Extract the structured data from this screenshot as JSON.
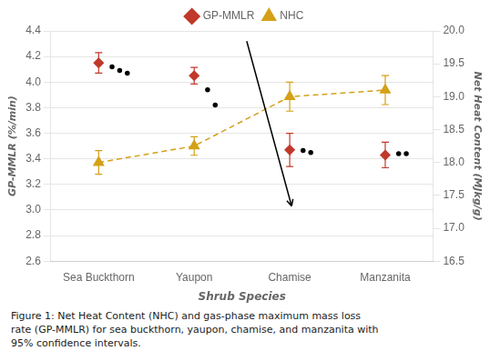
{
  "chart_data": {
    "type": "scatter",
    "x_label": "Shrub Species",
    "y_label": "GP-MMLR (%/min)",
    "y2_label": "Net Heat Content (MJkg/g)",
    "categories": [
      "Sea Buckthorn",
      "Yaupon",
      "Chamise",
      "Manzanita"
    ],
    "xlim": [
      -0.5,
      3.5
    ],
    "ylim": [
      2.6,
      4.4
    ],
    "yticks": [
      2.6,
      2.8,
      {
        "value": 3,
        "label": "3.0"
      },
      3.2,
      3.4,
      3.6,
      3.8,
      {
        "value": 4,
        "label": "4.0"
      },
      4.2,
      4.4
    ],
    "y2lim": [
      16.5,
      20
    ],
    "y2ticks": [
      16.5,
      {
        "value": 17,
        "label": "17.0"
      },
      17.5,
      {
        "value": 18,
        "label": "18.0"
      },
      18.5,
      {
        "value": 19,
        "label": "19.0"
      },
      19.5,
      {
        "value": 20,
        "label": "20.0"
      }
    ],
    "grid": "y",
    "legend": "top",
    "series": [
      {
        "color": "black",
        "marker": "dot",
        "x": [
          0.14,
          0.22,
          0.3,
          1.14,
          1.22,
          2.14,
          2.22,
          3.14,
          3.22
        ],
        "values": [
          4.12,
          4.09,
          4.07,
          3.94,
          3.82,
          3.465,
          3.45,
          3.44,
          3.44
        ]
      },
      {
        "name": "GP-MMLR",
        "color": "#c0392b",
        "marker": "diamond",
        "values": [
          4.15,
          4.05,
          3.47,
          3.43
        ],
        "errors": [
          0.08,
          0.065,
          0.13,
          0.1
        ]
      },
      {
        "name": "NHC",
        "axis": "y2",
        "color": "#d4a017",
        "marker": "triangle",
        "line_style": "dashed",
        "values": [
          18.0,
          18.25,
          19.0,
          19.1
        ],
        "errors": [
          0.18,
          0.14,
          0.22,
          0.22
        ]
      }
    ],
    "annotations": [
      {
        "type": "arrow",
        "from": [
          1.55,
          4.32
        ],
        "to": [
          2.02,
          3.03
        ]
      }
    ],
    "caption": [
      "Figure 1: Net Heat Content (NHC) and gas-phase maximum mass loss",
      "rate (GP-MMLR) for sea buckthorn, yaupon, chamise, and manzanita with",
      "95% confidence intervals."
    ]
  }
}
